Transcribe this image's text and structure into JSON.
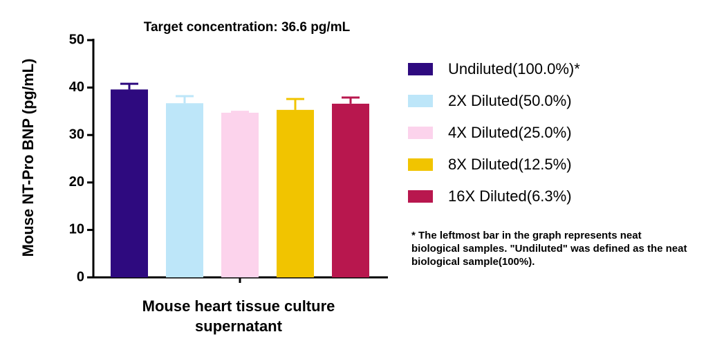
{
  "chart_data": {
    "type": "bar",
    "title": "Target concentration: 36.6 pg/mL",
    "y_label": "Mouse NT-Pro BNP (pg/mL)",
    "categories": [
      "Mouse heart tissue culture supernatant"
    ],
    "series": [
      {
        "name": "Undiluted(100.0%)*",
        "color": "#2e0a7f",
        "values": [
          39.6
        ],
        "errors": [
          1.2
        ]
      },
      {
        "name": "2X Diluted(50.0%)",
        "color": "#bde6f9",
        "values": [
          36.7
        ],
        "errors": [
          1.5
        ]
      },
      {
        "name": "4X Diluted(25.0%)",
        "color": "#fcd3ec",
        "values": [
          34.7
        ],
        "errors": [
          0.2
        ]
      },
      {
        "name": "8X Diluted(12.5%)",
        "color": "#f1c400",
        "values": [
          35.3
        ],
        "errors": [
          2.3
        ]
      },
      {
        "name": "16X Diluted(6.3%)",
        "color": "#b8174e",
        "values": [
          36.6
        ],
        "errors": [
          1.3
        ]
      }
    ],
    "ylim": [
      0,
      50
    ],
    "yticks": [
      0,
      10,
      20,
      30,
      40,
      50
    ],
    "note": "* The leftmost bar in the graph represents neat biological samples. \"Undiluted\" was defined as the neat biological sample(100%).",
    "legend_position": "right"
  }
}
